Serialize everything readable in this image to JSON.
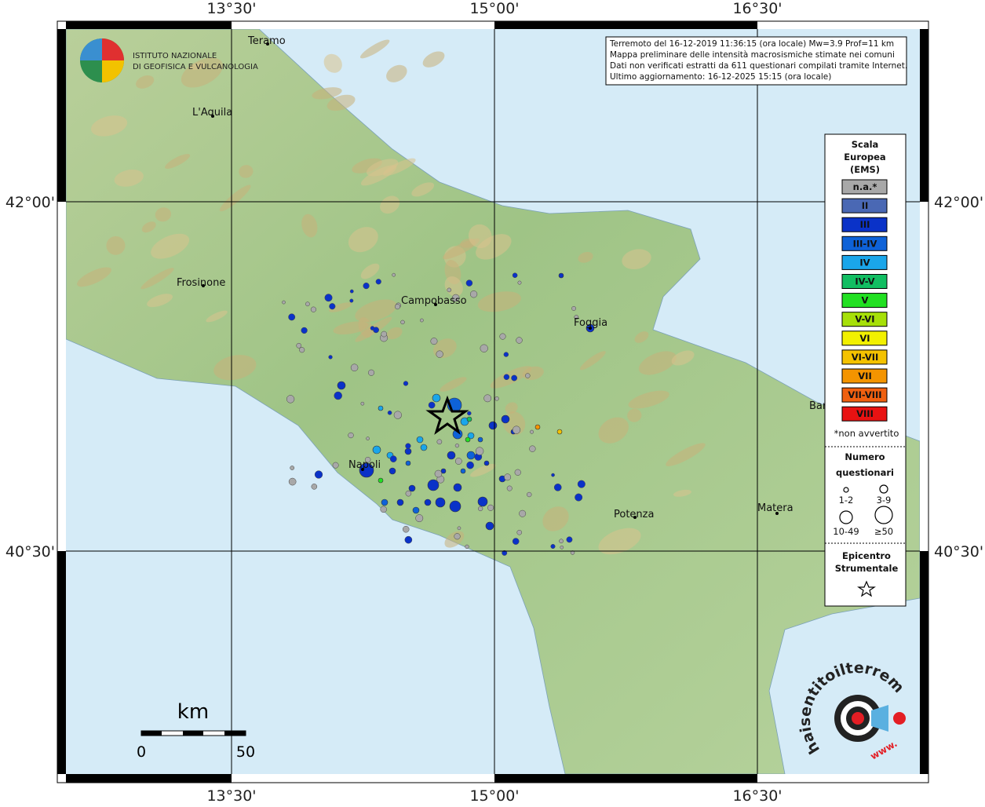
{
  "header": {
    "lines": [
      "Terremoto del 16-12-2019 11:36:15 (ora locale) Mw=3.9 Prof=11 km",
      "Mappa preliminare delle intensità macrosismiche stimate nei comuni",
      "Dati non verificati estratti da 611 questionari compilati tramite Internet.",
      "Ultimo aggiornamento: 16-12-2025 15:15 (ora locale)"
    ]
  },
  "institute": {
    "line1": "ISTITUTO NAZIONALE",
    "line2": "DI GEOFISICA E VULCANOLOGIA"
  },
  "axes": {
    "top": [
      "13°30'",
      "15°00'",
      "16°30'"
    ],
    "bottom": [
      "13°30'",
      "15°00'",
      "16°30'"
    ],
    "left": [
      "42°00'",
      "40°30'"
    ],
    "right": [
      "42°00'",
      "40°30'"
    ]
  },
  "cities": [
    "Teramo",
    "L'Aquila",
    "Frosinone",
    "Campobasso",
    "Foggia",
    "Napoli",
    "Potenza",
    "Matera",
    "Bari"
  ],
  "legend": {
    "title": [
      "Scala",
      "Europea",
      "(EMS)"
    ],
    "classes": [
      {
        "label": "n.a.*",
        "color": "#a8a8a8"
      },
      {
        "label": "II",
        "color": "#4a68b4"
      },
      {
        "label": "III",
        "color": "#0a32c8"
      },
      {
        "label": "III-IV",
        "color": "#0e62d8"
      },
      {
        "label": "IV",
        "color": "#1aa6ea"
      },
      {
        "label": "IV-V",
        "color": "#12be62"
      },
      {
        "label": "V",
        "color": "#22e022"
      },
      {
        "label": "V-VI",
        "color": "#a6e008"
      },
      {
        "label": "VI",
        "color": "#f2f000"
      },
      {
        "label": "VI-VII",
        "color": "#f4c200"
      },
      {
        "label": "VII",
        "color": "#f49400"
      },
      {
        "label": "VII-VIII",
        "color": "#f06010"
      },
      {
        "label": "VIII",
        "color": "#e81212"
      }
    ],
    "note": "*non avvertito",
    "count_title": [
      "Numero",
      "questionari"
    ],
    "sizes": [
      "1-2",
      "3-9",
      "10-49",
      "≥50"
    ],
    "epicenter_title": [
      "Epicentro",
      "Strumentale"
    ]
  },
  "scale_bar": {
    "unit": "km",
    "ticks": [
      0,
      50
    ]
  },
  "logo": {
    "text": "haisentitoilterremoto.it",
    "prefix": "www."
  }
}
